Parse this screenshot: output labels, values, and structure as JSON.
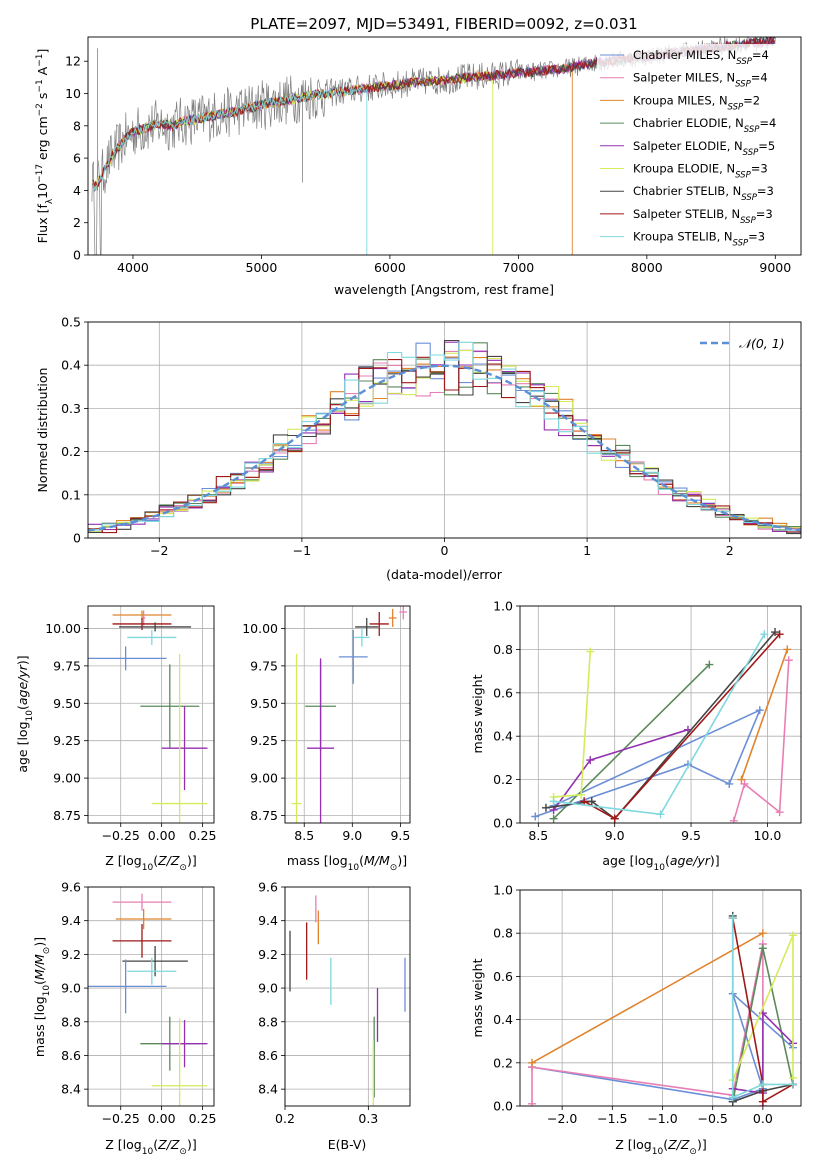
{
  "chart_data": [
    {
      "type": "line",
      "title": "PLATE=2097, MJD=53491, FIBERID=0092, z=0.031",
      "xlabel": "wavelength [Angstrom, rest frame]",
      "ylabel": "Flux [f_λ 10^-17 erg cm^-2 s^-1 A^-1]",
      "xlim": [
        3650,
        9200
      ],
      "ylim": [
        0,
        13.5
      ],
      "xticks": [
        4000,
        5000,
        6000,
        7000,
        8000,
        9000
      ],
      "yticks": [
        0,
        2,
        4,
        6,
        8,
        10,
        12
      ],
      "grid": false,
      "legend": "right",
      "series": [
        {
          "name": "Chabrier MILES, N_SSP=4",
          "color": "#6b8fd6"
        },
        {
          "name": "Salpeter MILES, N_SSP=4",
          "color": "#e87fb4"
        },
        {
          "name": "Kroupa MILES, N_SSP=2",
          "color": "#e0842d"
        },
        {
          "name": "Chabrier ELODIE, N_SSP=4",
          "color": "#5a8a5a"
        },
        {
          "name": "Salpeter ELODIE, N_SSP=5",
          "color": "#9431b0"
        },
        {
          "name": "Kroupa ELODIE, N_SSP=3",
          "color": "#d4ec5a"
        },
        {
          "name": "Chabrier STELIB, N_SSP=3",
          "color": "#444444"
        },
        {
          "name": "Salpeter STELIB, N_SSP=3",
          "color": "#a01818"
        },
        {
          "name": "Kroupa STELIB, N_SSP=3",
          "color": "#7fd8de"
        }
      ],
      "data_color": "#808080",
      "continuum": {
        "x": [
          3680,
          3700,
          3750,
          3800,
          3850,
          3900,
          3950,
          4000,
          4100,
          4200,
          4300,
          4400,
          4500,
          4600,
          4800,
          5000,
          5200,
          5400,
          5600,
          5800,
          6000,
          6200,
          6400,
          6600,
          6800,
          7000,
          7200,
          7400,
          7600,
          7800,
          8000,
          8200,
          8400,
          8600,
          8800,
          9000
        ],
        "y": [
          4.6,
          4.2,
          4.8,
          5.6,
          6.3,
          6.8,
          7.3,
          7.6,
          7.9,
          8.1,
          8.0,
          8.3,
          8.4,
          8.6,
          8.9,
          9.3,
          9.6,
          9.9,
          10.1,
          10.3,
          10.5,
          10.7,
          10.8,
          11.0,
          11.1,
          11.3,
          11.4,
          11.6,
          11.9,
          12.1,
          12.3,
          12.5,
          12.7,
          12.9,
          13.1,
          13.3
        ]
      }
    },
    {
      "type": "histogram",
      "xlabel": "(data-model)/error",
      "ylabel": "Normed distribution",
      "xlim": [
        -2.5,
        2.5
      ],
      "ylim": [
        0,
        0.5
      ],
      "xticks": [
        -2,
        -1,
        0,
        1,
        2
      ],
      "yticks": [
        0.0,
        0.1,
        0.2,
        0.3,
        0.4,
        0.5
      ],
      "grid": true,
      "legend": "top-right",
      "reference_curve": {
        "name": "𝒩(0, 1)",
        "color": "#5b8fd6",
        "mean": 0,
        "std": 1
      },
      "bin_width": 0.1,
      "series_colors": [
        "#6b8fd6",
        "#e87fb4",
        "#e0842d",
        "#5a8a5a",
        "#9431b0",
        "#d4ec5a",
        "#444444",
        "#a01818",
        "#7fd8de"
      ]
    },
    {
      "type": "scatter",
      "xlabel": "Z [log10(Z/Z⊙)]",
      "ylabel": "age  [log10(age/yr)]",
      "xlim": [
        -0.45,
        0.32
      ],
      "ylim": [
        8.7,
        10.15
      ],
      "xticks": [
        "-0.25",
        "0.00",
        "0.25"
      ],
      "yticks": [
        "8.75",
        "9.00",
        "9.25",
        "9.50",
        "9.75",
        "10.00"
      ],
      "grid": true,
      "errorbars": [
        {
          "color": "#e0842d",
          "x": -0.12,
          "y": 10.09,
          "dx": 0.18,
          "dy": 0.03
        },
        {
          "color": "#e87fb4",
          "x": -0.11,
          "y": 10.07,
          "dx": 0.01,
          "dy": 0.05
        },
        {
          "color": "#a01818",
          "x": -0.12,
          "y": 10.03,
          "dx": 0.18,
          "dy": 0.04
        },
        {
          "color": "#444444",
          "x": -0.04,
          "y": 10.01,
          "dx": 0.22,
          "dy": 0.03
        },
        {
          "color": "#7fd8de",
          "x": -0.06,
          "y": 9.94,
          "dx": 0.15,
          "dy": 0.05
        },
        {
          "color": "#6b8fd6",
          "x": -0.22,
          "y": 9.8,
          "dx": 0.25,
          "dy": 0.08
        },
        {
          "color": "#5a8a5a",
          "x": 0.05,
          "y": 9.48,
          "dx": 0.18,
          "dy": 0.28
        },
        {
          "color": "#9431b0",
          "x": 0.14,
          "y": 9.2,
          "dx": 0.14,
          "dy": 0.28
        },
        {
          "color": "#d4ec5a",
          "x": 0.11,
          "y": 8.83,
          "dx": 0.17,
          "dy": 1.0
        }
      ]
    },
    {
      "type": "scatter",
      "xlabel": "mass [log10(M/M⊙)]",
      "ylabel": "",
      "xlim": [
        8.3,
        9.6
      ],
      "ylim": [
        8.7,
        10.15
      ],
      "xticks": [
        "8.5",
        "9.0",
        "9.5"
      ],
      "yticks": [
        "8.75",
        "9.00",
        "9.25",
        "9.50",
        "9.75",
        "10.00"
      ],
      "grid": true,
      "errorbars": [
        {
          "color": "#e87fb4",
          "x": 9.53,
          "y": 10.11,
          "dx": 0.04,
          "dy": 0.05
        },
        {
          "color": "#e0842d",
          "x": 9.42,
          "y": 10.07,
          "dx": 0.04,
          "dy": 0.06
        },
        {
          "color": "#a01818",
          "x": 9.28,
          "y": 10.03,
          "dx": 0.1,
          "dy": 0.08
        },
        {
          "color": "#444444",
          "x": 9.15,
          "y": 10.01,
          "dx": 0.12,
          "dy": 0.06
        },
        {
          "color": "#7fd8de",
          "x": 9.1,
          "y": 9.94,
          "dx": 0.08,
          "dy": 0.06
        },
        {
          "color": "#6b8fd6",
          "x": 9.01,
          "y": 9.81,
          "dx": 0.15,
          "dy": 0.18
        },
        {
          "color": "#5a8a5a",
          "x": 8.67,
          "y": 9.48,
          "dx": 0.16,
          "dy": 0.3
        },
        {
          "color": "#9431b0",
          "x": 8.67,
          "y": 9.2,
          "dx": 0.14,
          "dy": 0.6
        },
        {
          "color": "#d4ec5a",
          "x": 8.42,
          "y": 8.83,
          "dx": 0.05,
          "dy": 1.0
        }
      ]
    },
    {
      "type": "line",
      "xlabel": "age  [log10(age/yr)]",
      "ylabel": "mass weight",
      "xlim": [
        8.38,
        10.22
      ],
      "ylim": [
        0.0,
        1.0
      ],
      "xticks": [
        "8.5",
        "9.0",
        "9.5",
        "10.0"
      ],
      "yticks": [
        "0.0",
        "0.2",
        "0.4",
        "0.6",
        "0.8",
        "1.0"
      ],
      "grid": true,
      "series": [
        {
          "color": "#6b8fd6",
          "x": [
            8.48,
            9.48,
            9.75,
            9.95,
            8.6
          ],
          "y": [
            0.03,
            0.27,
            0.18,
            0.52,
            0.08
          ]
        },
        {
          "color": "#e87fb4",
          "x": [
            9.78,
            9.85,
            10.08,
            10.14
          ],
          "y": [
            0.01,
            0.18,
            0.05,
            0.75
          ]
        },
        {
          "color": "#e0842d",
          "x": [
            9.83,
            10.13
          ],
          "y": [
            0.2,
            0.8
          ]
        },
        {
          "color": "#5a8a5a",
          "x": [
            8.6,
            9.62
          ],
          "y": [
            0.02,
            0.73
          ]
        },
        {
          "color": "#9431b0",
          "x": [
            8.6,
            8.84,
            9.48
          ],
          "y": [
            0.06,
            0.29,
            0.43
          ]
        },
        {
          "color": "#d4ec5a",
          "x": [
            8.6,
            8.78,
            8.84
          ],
          "y": [
            0.12,
            0.13,
            0.79
          ]
        },
        {
          "color": "#444444",
          "x": [
            8.55,
            8.85,
            9.0,
            10.05
          ],
          "y": [
            0.07,
            0.1,
            0.02,
            0.88
          ]
        },
        {
          "color": "#a01818",
          "x": [
            8.8,
            9.0,
            10.08
          ],
          "y": [
            0.1,
            0.02,
            0.87
          ]
        },
        {
          "color": "#7fd8de",
          "x": [
            8.6,
            9.3,
            9.98
          ],
          "y": [
            0.1,
            0.04,
            0.87
          ]
        }
      ]
    },
    {
      "type": "scatter",
      "xlabel": "Z [log10(Z/Z⊙)]",
      "ylabel": "mass [log10(M/M⊙)]",
      "xlim": [
        -0.45,
        0.32
      ],
      "ylim": [
        8.3,
        9.6
      ],
      "xticks": [
        "-0.25",
        "0.00",
        "0.25"
      ],
      "yticks": [
        "8.4",
        "8.6",
        "8.8",
        "9.0",
        "9.2",
        "9.4",
        "9.6"
      ],
      "grid": true,
      "errorbars": [
        {
          "color": "#e87fb4",
          "x": -0.12,
          "y": 9.51,
          "dx": 0.18,
          "dy": 0.05
        },
        {
          "color": "#e0842d",
          "x": -0.11,
          "y": 9.41,
          "dx": 0.17,
          "dy": 0.06
        },
        {
          "color": "#a01818",
          "x": -0.12,
          "y": 9.28,
          "dx": 0.18,
          "dy": 0.1
        },
        {
          "color": "#444444",
          "x": -0.04,
          "y": 9.16,
          "dx": 0.2,
          "dy": 0.09
        },
        {
          "color": "#7fd8de",
          "x": -0.06,
          "y": 9.1,
          "dx": 0.15,
          "dy": 0.08
        },
        {
          "color": "#6b8fd6",
          "x": -0.22,
          "y": 9.01,
          "dx": 0.25,
          "dy": 0.16
        },
        {
          "color": "#5a8a5a",
          "x": 0.05,
          "y": 8.67,
          "dx": 0.18,
          "dy": 0.16
        },
        {
          "color": "#9431b0",
          "x": 0.14,
          "y": 8.67,
          "dx": 0.14,
          "dy": 0.14
        },
        {
          "color": "#d4ec5a",
          "x": 0.11,
          "y": 8.42,
          "dx": 0.17,
          "dy": 0.4
        }
      ]
    },
    {
      "type": "scatter",
      "xlabel": "E(B-V)",
      "ylabel": "",
      "xlim": [
        0.2,
        0.35
      ],
      "ylim": [
        8.3,
        9.6
      ],
      "xticks": [
        "0.2",
        "0.3"
      ],
      "yticks": [
        "8.4",
        "8.6",
        "8.8",
        "9.0",
        "9.2",
        "9.4",
        "9.6"
      ],
      "grid": true,
      "errorbars": [
        {
          "color": "#e87fb4",
          "x": 0.237,
          "y": 9.47,
          "dy": 0.08
        },
        {
          "color": "#e0842d",
          "x": 0.24,
          "y": 9.36,
          "dy": 0.1
        },
        {
          "color": "#444444",
          "x": 0.206,
          "y": 9.16,
          "dy": 0.18
        },
        {
          "color": "#a01818",
          "x": 0.226,
          "y": 9.22,
          "dy": 0.17
        },
        {
          "color": "#7fd8de",
          "x": 0.255,
          "y": 9.04,
          "dy": 0.14
        },
        {
          "color": "#6b8fd6",
          "x": 0.344,
          "y": 9.02,
          "dy": 0.16
        },
        {
          "color": "#9431b0",
          "x": 0.311,
          "y": 8.84,
          "dy": 0.16
        },
        {
          "color": "#5a8a5a",
          "x": 0.307,
          "y": 8.59,
          "dy": 0.24
        },
        {
          "color": "#d4ec5a",
          "x": 0.306,
          "y": 8.47,
          "dy": 0.22
        }
      ]
    },
    {
      "type": "line",
      "xlabel": "Z [log10(Z/Z⊙)]",
      "ylabel": "mass weight",
      "xlim": [
        -2.42,
        0.38
      ],
      "ylim": [
        0.0,
        1.0
      ],
      "xticks": [
        "-2.0",
        "-1.5",
        "-1.0",
        "-0.5",
        "0.0"
      ],
      "yticks": [
        "0.0",
        "0.2",
        "0.4",
        "0.6",
        "0.8",
        "1.0"
      ],
      "grid": true,
      "series": [
        {
          "color": "#6b8fd6",
          "x": [
            -2.3,
            -0.3,
            0.0,
            -0.3,
            0.3
          ],
          "y": [
            0.18,
            0.03,
            0.08,
            0.52,
            0.27
          ]
        },
        {
          "color": "#e87fb4",
          "x": [
            -2.3,
            -2.3,
            -0.3,
            0.0,
            0.0
          ],
          "y": [
            0.01,
            0.18,
            0.05,
            0.75,
            0.0
          ]
        },
        {
          "color": "#e0842d",
          "x": [
            -2.3,
            0.0
          ],
          "y": [
            0.2,
            0.8
          ]
        },
        {
          "color": "#5a8a5a",
          "x": [
            -0.3,
            0.0,
            0.3
          ],
          "y": [
            0.02,
            0.73,
            0.1
          ]
        },
        {
          "color": "#9431b0",
          "x": [
            -0.3,
            0.0,
            0.0,
            0.3
          ],
          "y": [
            0.08,
            0.06,
            0.43,
            0.29
          ]
        },
        {
          "color": "#d4ec5a",
          "x": [
            -0.3,
            0.3,
            0.3
          ],
          "y": [
            0.12,
            0.79,
            0.13
          ]
        },
        {
          "color": "#444444",
          "x": [
            -0.3,
            -0.3,
            0.0,
            0.3
          ],
          "y": [
            0.88,
            0.02,
            0.07,
            0.1
          ]
        },
        {
          "color": "#a01818",
          "x": [
            -0.3,
            0.0,
            0.0,
            0.3
          ],
          "y": [
            0.87,
            0.1,
            0.02,
            0.1
          ]
        },
        {
          "color": "#7fd8de",
          "x": [
            -0.3,
            -0.3,
            0.0,
            0.3
          ],
          "y": [
            0.87,
            0.04,
            0.1,
            0.1
          ]
        }
      ]
    }
  ]
}
